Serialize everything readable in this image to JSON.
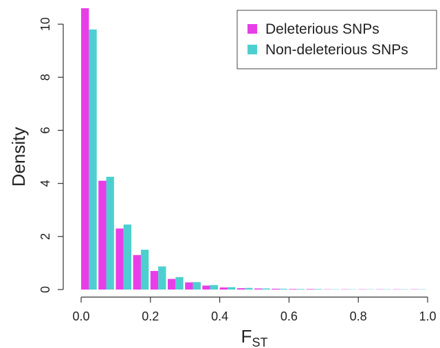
{
  "chart_data": {
    "type": "histogram",
    "xlabel": {
      "main": "F",
      "sub": "ST"
    },
    "ylabel": "Density",
    "bins": [
      0,
      0.05,
      0.1,
      0.15,
      0.2,
      0.25,
      0.3,
      0.35,
      0.4,
      0.45,
      0.5,
      0.55,
      0.6,
      0.65,
      0.7,
      0.75,
      0.8,
      0.85,
      0.9,
      0.95,
      1
    ],
    "series": [
      {
        "name": "Deleterious SNPs",
        "color": "#e83ee8",
        "values": [
          10.6,
          4.1,
          2.3,
          1.3,
          0.7,
          0.4,
          0.27,
          0.15,
          0.08,
          0.05,
          0.04,
          0.03,
          0.02,
          0.02,
          0.01,
          0.01,
          0.01,
          0.01,
          0.01,
          0.01
        ]
      },
      {
        "name": "Non-deleterious SNPs",
        "color": "#4ecfcf",
        "values": [
          9.8,
          4.25,
          2.45,
          1.5,
          0.87,
          0.47,
          0.28,
          0.17,
          0.09,
          0.06,
          0.04,
          0.03,
          0.02,
          0.02,
          0.01,
          0.01,
          0.01,
          0.01,
          0.01,
          0.01
        ]
      }
    ],
    "xlim": [
      0,
      1
    ],
    "xticks": [
      {
        "value": 0,
        "label": "0.0"
      },
      0.2,
      0.4,
      0.6,
      0.8,
      {
        "value": 1,
        "label": "1.0"
      }
    ],
    "ylim": [
      0,
      10.6
    ],
    "yticks": [
      0,
      2,
      4,
      6,
      8,
      10
    ],
    "legend": "top-right"
  }
}
